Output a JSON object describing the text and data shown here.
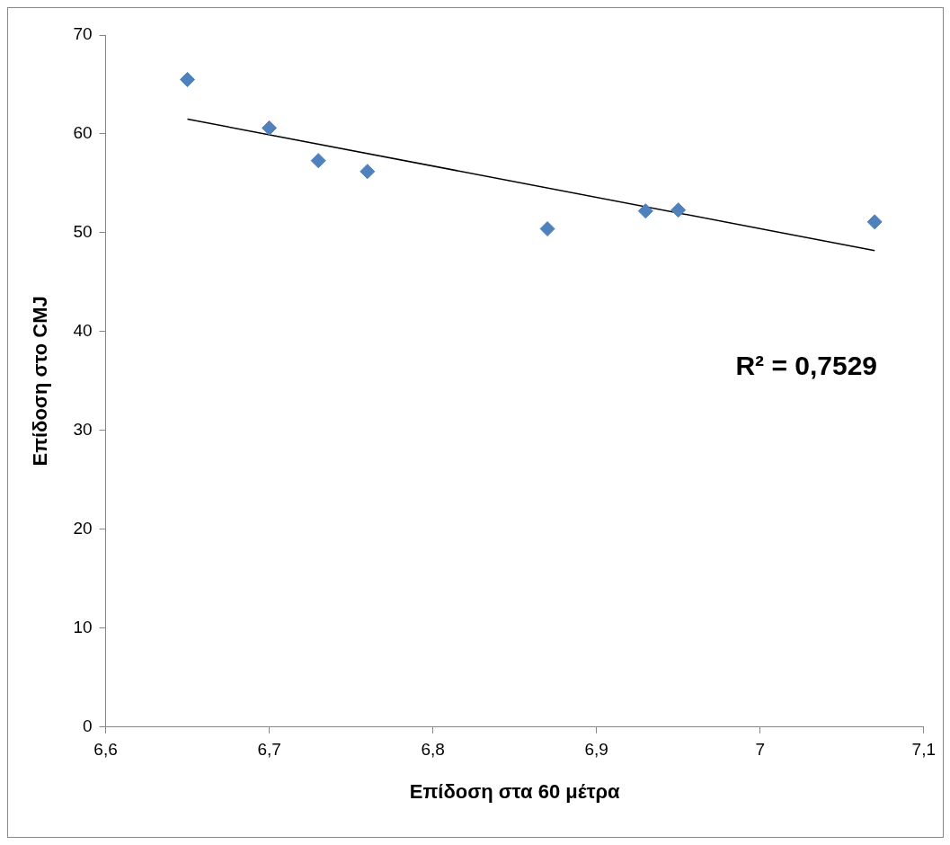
{
  "chart_data": {
    "type": "scatter",
    "xlabel": "Επίδοση στα 60 μέτρα",
    "ylabel": "Επίδοση στο CMJ",
    "xlim": [
      6.6,
      7.1
    ],
    "xticks": [
      {
        "value": 6.6,
        "label": "6,6"
      },
      {
        "value": 6.7,
        "label": "6,7"
      },
      {
        "value": 6.8,
        "label": "6,8"
      },
      {
        "value": 6.9,
        "label": "6,9"
      },
      7,
      {
        "value": 7.1,
        "label": "7,1"
      }
    ],
    "ylim": [
      0,
      70
    ],
    "yticks": [
      0,
      10,
      20,
      30,
      40,
      50,
      60,
      70
    ],
    "series": [
      {
        "color": "#4f81bd",
        "x": [
          6.65,
          6.7,
          6.73,
          6.76,
          6.87,
          6.93,
          6.95,
          7.07
        ],
        "values": [
          65.5,
          60.6,
          57.3,
          56.2,
          50.4,
          52.2,
          52.3,
          51.1
        ]
      },
      {
        "type": "line",
        "color": "#000000",
        "marker": "none",
        "line_style": "solid",
        "x": [
          6.65,
          7.07
        ],
        "values": [
          61.5,
          48.2
        ]
      }
    ],
    "annotations": [
      "R² = 0,7529"
    ],
    "marker": "diamond",
    "legend": false,
    "grid": false
  }
}
